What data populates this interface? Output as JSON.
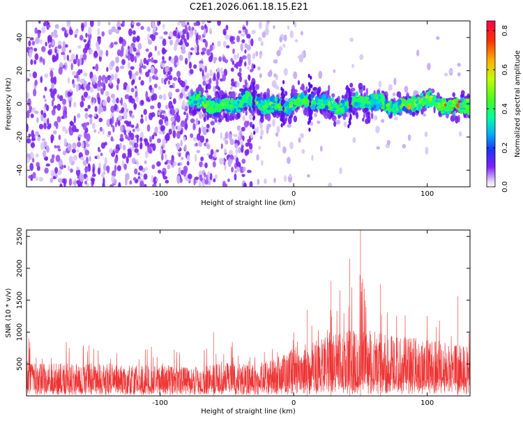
{
  "title": "C2E1.2026.061.18.15.E21",
  "chart_data": [
    {
      "type": "heatmap",
      "xlabel": "Height of straight line (km)",
      "ylabel": "Frequency (Hz)",
      "xlim": [
        -200,
        132
      ],
      "ylim": [
        -50,
        50
      ],
      "xticks": [
        -100,
        0,
        100
      ],
      "xtick_labels": [
        "-100",
        "0",
        "100"
      ],
      "yticks": [
        -40,
        -20,
        0,
        20,
        40
      ],
      "ytick_labels": [
        "-40",
        "-20",
        "0",
        "20",
        "40"
      ],
      "colorbar": {
        "label": "Normalized spectral amplitude",
        "range": [
          0.0,
          0.85
        ],
        "ticks": [
          0.0,
          0.2,
          0.4,
          0.6,
          0.8
        ],
        "tick_labels": [
          "0.0",
          "0.2",
          "0.4",
          "0.6",
          "0.8"
        ]
      },
      "features": {
        "noise_band": {
          "x_range": [
            -200,
            -30
          ],
          "amplitude": 0.1
        },
        "signal_start_km": -78,
        "signal_center_hz": 0,
        "signal_halfwidth_hz": 5,
        "peak_amplitude": 0.85,
        "peak_location_km": [
          112,
          125
        ]
      }
    },
    {
      "type": "line",
      "xlabel": "Height of straight line (km)",
      "ylabel": "SNR (10 * v/v)",
      "xlim": [
        -200,
        132
      ],
      "ylim": [
        0,
        2600
      ],
      "xticks": [
        -100,
        0,
        100
      ],
      "xtick_labels": [
        "-100",
        "0",
        "100"
      ],
      "yticks": [
        500,
        1000,
        1500,
        2000,
        2500
      ],
      "ytick_labels": [
        "500",
        "1000",
        "1500",
        "2000",
        "2500"
      ],
      "color": "#ee3333",
      "envelope": {
        "x": [
          -200,
          -150,
          -100,
          -70,
          -55,
          -40,
          -25,
          -10,
          0,
          10,
          25,
          40,
          50,
          60,
          75,
          90,
          105,
          120,
          132
        ],
        "baseline": [
          300,
          300,
          280,
          260,
          320,
          300,
          280,
          380,
          450,
          480,
          550,
          600,
          620,
          600,
          560,
          540,
          520,
          480,
          450
        ],
        "max": [
          900,
          850,
          800,
          700,
          1000,
          800,
          750,
          1050,
          1150,
          1300,
          1550,
          1800,
          2650,
          1750,
          1500,
          1400,
          1300,
          1200,
          1150
        ]
      },
      "notable_peaks": [
        {
          "x": -60,
          "y": 1000
        },
        {
          "x": 10,
          "y": 1350
        },
        {
          "x": 28,
          "y": 1800
        },
        {
          "x": 42,
          "y": 2150
        },
        {
          "x": 50,
          "y": 2620
        },
        {
          "x": 65,
          "y": 1750
        },
        {
          "x": 123,
          "y": 1560
        }
      ]
    }
  ]
}
